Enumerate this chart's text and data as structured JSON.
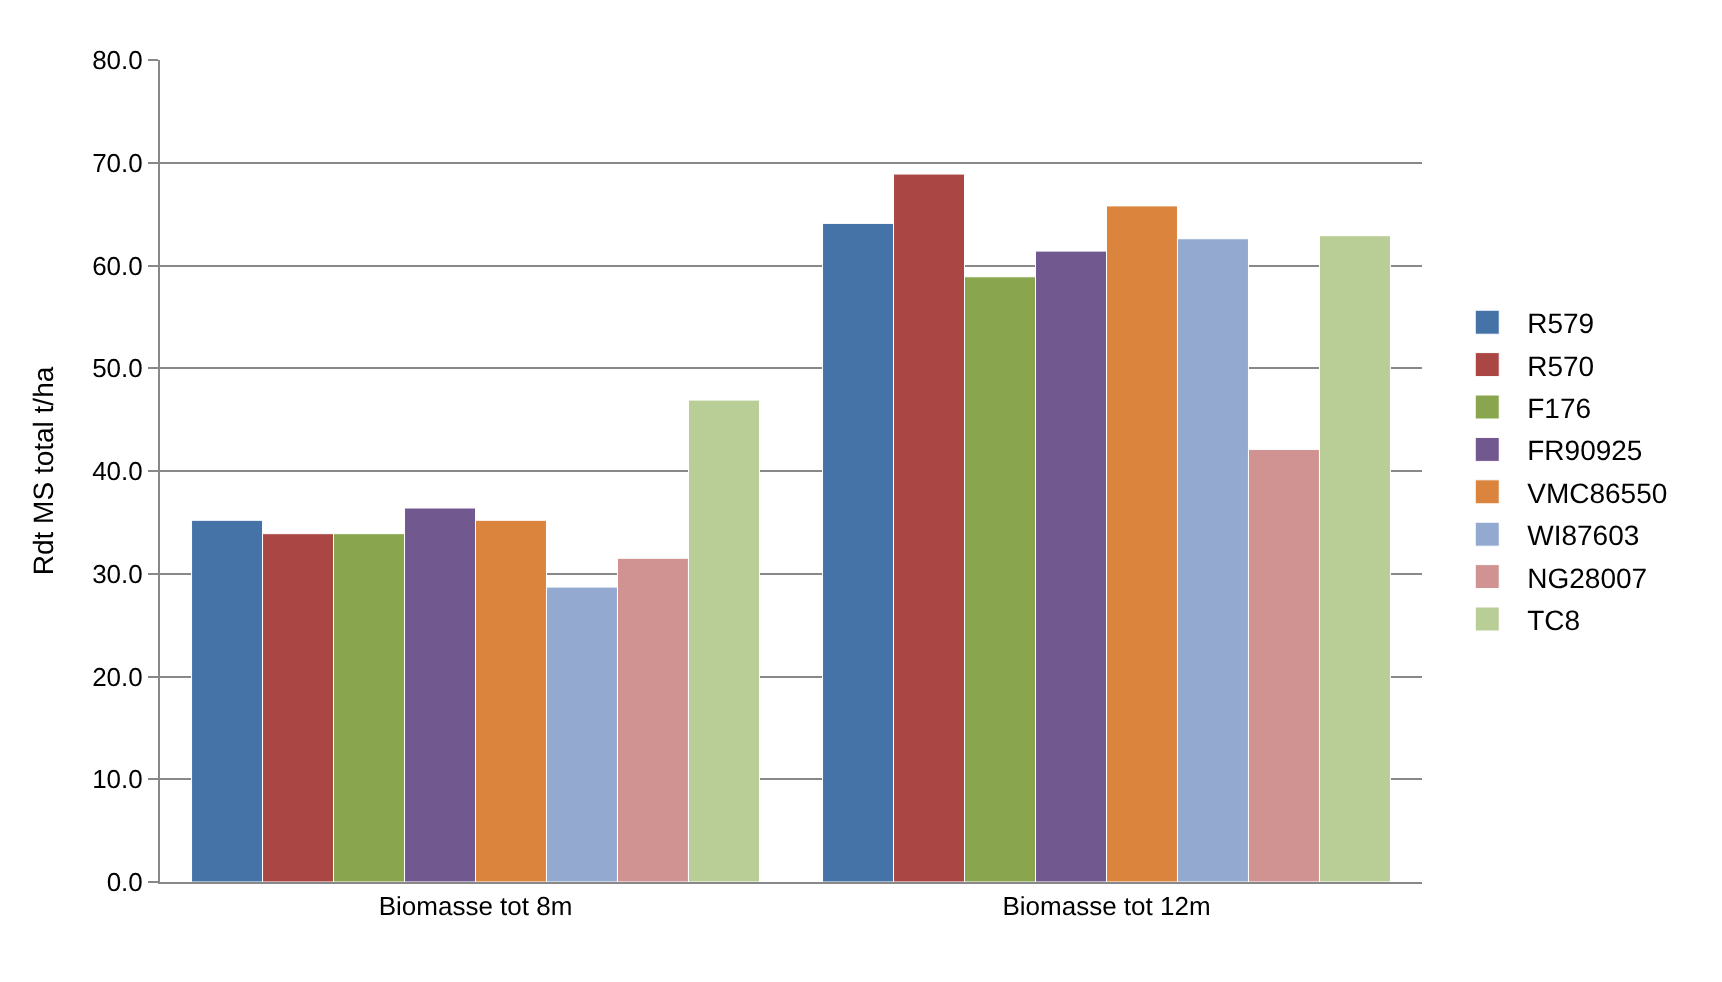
{
  "chart_data": {
    "type": "bar",
    "ylabel": "Rdt MS total t/ha",
    "categories": [
      "Biomasse tot 8m",
      "Biomasse tot 12m"
    ],
    "series": [
      {
        "name": "R579",
        "color": "#4572a7",
        "values": [
          35.2,
          64.1
        ]
      },
      {
        "name": "R570",
        "color": "#aa4643",
        "values": [
          33.9,
          68.9
        ]
      },
      {
        "name": "F176",
        "color": "#89a54e",
        "values": [
          33.9,
          58.9
        ]
      },
      {
        "name": "FR90925",
        "color": "#71588f",
        "values": [
          36.4,
          61.4
        ]
      },
      {
        "name": "VMC86550",
        "color": "#db843d",
        "values": [
          35.2,
          65.8
        ]
      },
      {
        "name": "WI87603",
        "color": "#93a9cf",
        "values": [
          28.7,
          62.6
        ]
      },
      {
        "name": "NG28007",
        "color": "#d19392",
        "values": [
          31.5,
          42.1
        ]
      },
      {
        "name": "TC8",
        "color": "#b9cd96",
        "values": [
          46.9,
          62.9
        ]
      }
    ],
    "ylim": [
      0,
      80
    ],
    "yticks": [
      {
        "value": 0,
        "label": "0.0"
      },
      {
        "value": 10,
        "label": "10.0"
      },
      {
        "value": 20,
        "label": "20.0"
      },
      {
        "value": 30,
        "label": "30.0"
      },
      {
        "value": 40,
        "label": "40.0"
      },
      {
        "value": 50,
        "label": "50.0"
      },
      {
        "value": 60,
        "label": "60.0"
      },
      {
        "value": 70,
        "label": "70.0"
      },
      {
        "value": 80,
        "label": "80.0"
      }
    ],
    "grid": "y",
    "legend": "right"
  }
}
